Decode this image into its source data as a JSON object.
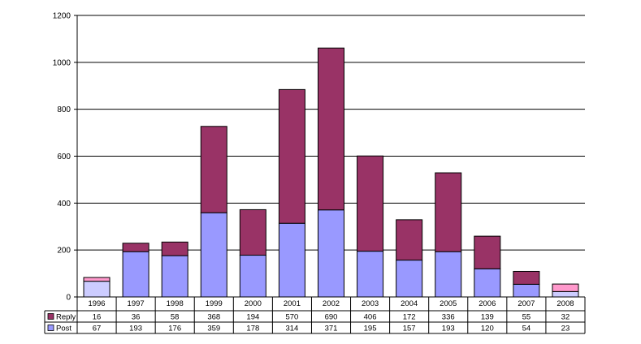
{
  "chart_data": {
    "type": "bar",
    "stacked": true,
    "categories": [
      "1996",
      "1997",
      "1998",
      "1999",
      "2000",
      "2001",
      "2002",
      "2003",
      "2004",
      "2005",
      "2006",
      "2007",
      "2008"
    ],
    "series": [
      {
        "name": "Reply",
        "values": [
          16,
          36,
          58,
          368,
          194,
          570,
          690,
          406,
          172,
          336,
          139,
          55,
          32
        ]
      },
      {
        "name": "Post",
        "values": [
          67,
          193,
          176,
          359,
          178,
          314,
          371,
          195,
          157,
          193,
          120,
          54,
          23
        ]
      }
    ],
    "ylim": [
      0,
      1200
    ],
    "yticks": [
      "0",
      "200",
      "400",
      "600",
      "800",
      "1000",
      "1200"
    ],
    "grid": true,
    "legend": "data-table",
    "colors": {
      "reply": "#993366",
      "post": "#9999ff",
      "reply_highlight": "#ff99cc",
      "post_highlight": "#ccccff"
    },
    "highlight_categories": [
      "1996",
      "2008"
    ]
  }
}
